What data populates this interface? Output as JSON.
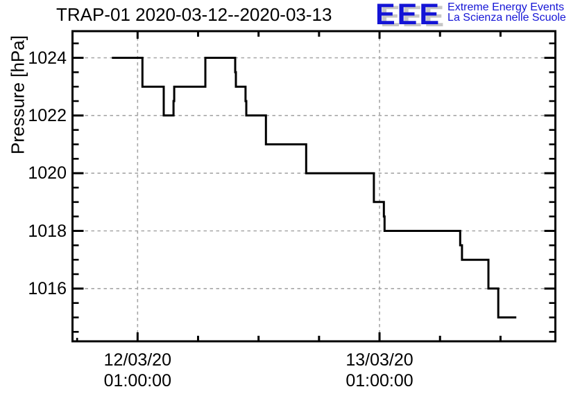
{
  "title": "TRAP-01 2020-03-12--2020-03-13",
  "logo": {
    "acronym": "EEE",
    "line1": "Extreme Energy Events",
    "line2": "La Scienza nelle Scuole",
    "blue": "#1414d6",
    "shadow": "#c6c6c6"
  },
  "chart_data": {
    "type": "line",
    "style": "step",
    "title": "TRAP-01 2020-03-12--2020-03-13",
    "xlabel": "",
    "ylabel": "Pressure [hPa]",
    "x_unit": "hours since 2020-03-12 00:00:00",
    "xlim": [
      -5.46,
      42.45
    ],
    "ylim": [
      1014.2,
      1024.95
    ],
    "grid": true,
    "line_color": "#000000",
    "grid_color": "#a6a6a6",
    "y_major_ticks": [
      1016,
      1018,
      1020,
      1022,
      1024
    ],
    "y_minor_step": 0.5,
    "x_major_ticks": [
      {
        "t": 1,
        "line1": "12/03/20",
        "line2": "01:00:00"
      },
      {
        "t": 25,
        "line1": "13/03/20",
        "line2": "01:00:00"
      }
    ],
    "x_medium_ticks": [
      7,
      13,
      19,
      31,
      37
    ],
    "x_small_ticks": [
      -5
    ],
    "points": [
      [
        -1.55,
        1024
      ],
      [
        1.48,
        1024
      ],
      [
        1.48,
        1023
      ],
      [
        3.59,
        1023
      ],
      [
        3.59,
        1022
      ],
      [
        4.56,
        1022
      ],
      [
        4.56,
        1022.5
      ],
      [
        4.63,
        1022.5
      ],
      [
        4.63,
        1023
      ],
      [
        7.72,
        1023
      ],
      [
        7.72,
        1024
      ],
      [
        10.68,
        1024
      ],
      [
        10.68,
        1023.5
      ],
      [
        10.75,
        1023.5
      ],
      [
        10.75,
        1023
      ],
      [
        11.71,
        1023
      ],
      [
        11.71,
        1022.5
      ],
      [
        11.78,
        1022.5
      ],
      [
        11.78,
        1022
      ],
      [
        13.73,
        1022
      ],
      [
        13.73,
        1021
      ],
      [
        17.72,
        1021
      ],
      [
        17.72,
        1020
      ],
      [
        24.44,
        1020
      ],
      [
        24.44,
        1019
      ],
      [
        25.43,
        1019
      ],
      [
        25.43,
        1018.5
      ],
      [
        25.5,
        1018.5
      ],
      [
        25.5,
        1018
      ],
      [
        33.0,
        1018
      ],
      [
        33.0,
        1017.5
      ],
      [
        33.18,
        1017.5
      ],
      [
        33.18,
        1017
      ],
      [
        35.8,
        1017
      ],
      [
        35.8,
        1016
      ],
      [
        36.78,
        1016
      ],
      [
        36.78,
        1015
      ],
      [
        38.57,
        1015
      ]
    ]
  }
}
